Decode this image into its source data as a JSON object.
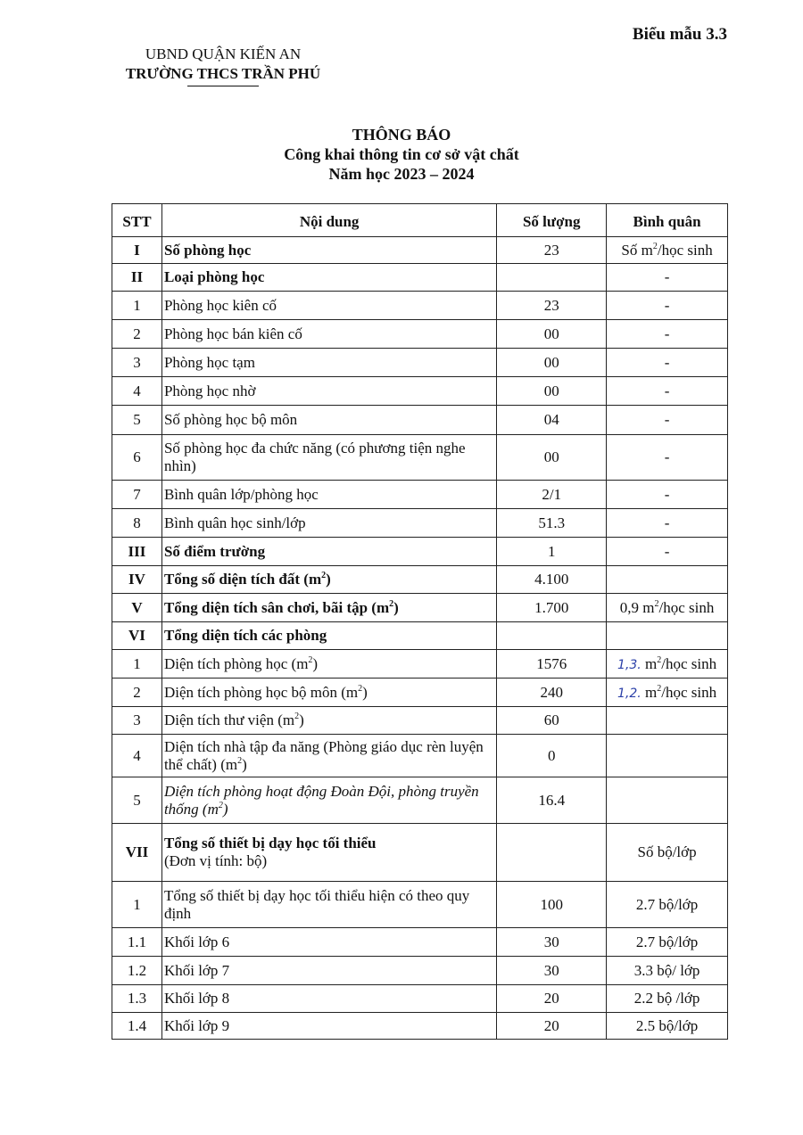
{
  "form_number": "Biểu mẫu 3.3",
  "header": {
    "authority": "UBND QUẬN KIẾN AN",
    "school": "TRƯỜNG THCS TRẦN PHÚ"
  },
  "title": {
    "main": "THÔNG BÁO",
    "subtitle": "Công khai thông tin cơ sở vật chất",
    "year": "Năm học 2023 – 2024"
  },
  "table": {
    "columns": [
      "STT",
      "Nội dung",
      "Số lượng",
      "Bình quân"
    ],
    "rows": [
      {
        "stt": "I",
        "bold": true,
        "content": [
          {
            "t": "Số phòng học"
          }
        ],
        "qty": "23",
        "avg": [
          {
            "t": "Số m"
          },
          {
            "t": "2",
            "sup": true
          },
          {
            "t": "/học sinh"
          }
        ],
        "h": 30
      },
      {
        "stt": "II",
        "bold": true,
        "content": [
          {
            "t": "Loại phòng học"
          }
        ],
        "qty": "",
        "avg": [
          {
            "t": "-"
          }
        ],
        "h": 31
      },
      {
        "stt": "1",
        "content": [
          {
            "t": "Phòng học kiên cố"
          }
        ],
        "qty": "23",
        "avg": [
          {
            "t": "-"
          }
        ],
        "h": 32
      },
      {
        "stt": "2",
        "content": [
          {
            "t": "Phòng học bán kiên cố"
          }
        ],
        "qty": "00",
        "avg": [
          {
            "t": "-"
          }
        ],
        "h": 32
      },
      {
        "stt": "3",
        "content": [
          {
            "t": "Phòng học tạm"
          }
        ],
        "qty": "00",
        "avg": [
          {
            "t": "-"
          }
        ],
        "h": 32
      },
      {
        "stt": "4",
        "content": [
          {
            "t": "Phòng học nhờ"
          }
        ],
        "qty": "00",
        "avg": [
          {
            "t": "-"
          }
        ],
        "h": 32
      },
      {
        "stt": "5",
        "content": [
          {
            "t": "Số phòng học bộ môn"
          }
        ],
        "qty": "04",
        "avg": [
          {
            "t": "-"
          }
        ],
        "h": 33
      },
      {
        "stt": "6",
        "content": [
          {
            "t": "Số phòng học đa chức năng (có phương tiện nghe nhìn)"
          }
        ],
        "qty": "00",
        "avg": [
          {
            "t": "-"
          }
        ],
        "h": 51
      },
      {
        "stt": "7",
        "content": [
          {
            "t": "Bình quân lớp/phòng học"
          }
        ],
        "qty": "2/1",
        "avg": [
          {
            "t": "-"
          }
        ],
        "h": 32
      },
      {
        "stt": "8",
        "content": [
          {
            "t": "Bình quân học sinh/lớp"
          }
        ],
        "qty": "51.3",
        "avg": [
          {
            "t": "-"
          }
        ],
        "h": 32
      },
      {
        "stt": "III",
        "bold": true,
        "content": [
          {
            "t": "Số điểm trường"
          }
        ],
        "qty": "1",
        "avg": [
          {
            "t": "-"
          }
        ],
        "h": 32
      },
      {
        "stt": "IV",
        "bold": true,
        "content": [
          {
            "t": "Tổng số diện tích đất (m"
          },
          {
            "t": "2",
            "sup": true
          },
          {
            "t": ")"
          }
        ],
        "qty": "4.100",
        "avg": [],
        "h": 31
      },
      {
        "stt": "V",
        "bold": true,
        "content": [
          {
            "t": "Tổng diện tích sân chơi, bãi tập (m"
          },
          {
            "t": "2",
            "sup": true
          },
          {
            "t": ")"
          }
        ],
        "qty": "1.700",
        "avg": [
          {
            "t": "0,9 m"
          },
          {
            "t": "2",
            "sup": true
          },
          {
            "t": "/học sinh"
          }
        ],
        "h": 32
      },
      {
        "stt": "VI",
        "bold": true,
        "content": [
          {
            "t": "Tổng diện tích các phòng"
          }
        ],
        "qty": "",
        "avg": [],
        "h": 31
      },
      {
        "stt": "1",
        "content": [
          {
            "t": "Diện tích phòng học (m"
          },
          {
            "t": "2",
            "sup": true
          },
          {
            "t": ")"
          }
        ],
        "qty": "1576",
        "avg": [
          {
            "t": "1,3.",
            "hand": true
          },
          {
            "t": " m"
          },
          {
            "t": "2",
            "sup": true
          },
          {
            "t": "/học sinh"
          }
        ],
        "h": 32
      },
      {
        "stt": "2",
        "content": [
          {
            "t": "Diện tích phòng học bộ môn (m"
          },
          {
            "t": "2",
            "sup": true
          },
          {
            "t": ")"
          }
        ],
        "qty": "240",
        "avg": [
          {
            "t": "1,2.",
            "hand": true
          },
          {
            "t": " m"
          },
          {
            "t": "2",
            "sup": true
          },
          {
            "t": "/học sinh"
          }
        ],
        "h": 32
      },
      {
        "stt": "3",
        "content": [
          {
            "t": "Diện tích thư viện (m"
          },
          {
            "t": "2",
            "sup": true
          },
          {
            "t": ")"
          }
        ],
        "qty": "60",
        "avg": [],
        "h": 31
      },
      {
        "stt": "4",
        "content": [
          {
            "t": "Diện tích nhà tập đa năng (Phòng giáo dục rèn luyện thể chất) (m"
          },
          {
            "t": "2",
            "sup": true
          },
          {
            "t": ")"
          }
        ],
        "qty": "0",
        "avg": [],
        "h": 48
      },
      {
        "stt": "5",
        "italic": true,
        "content": [
          {
            "t": "Diện tích phòng hoạt động Đoàn Đội, phòng truyền thống (m"
          },
          {
            "t": "2",
            "sup": true
          },
          {
            "t": ")"
          }
        ],
        "qty": "16.4",
        "avg": [],
        "h": 52
      },
      {
        "stt": "VII",
        "bold": true,
        "content": [
          {
            "t": "Tổng số thiết bị dạy học tối thiểu"
          },
          {
            "t": "(Đơn vị tính: bộ)",
            "sub": true
          }
        ],
        "qty": "",
        "avg": [
          {
            "t": "Số bộ/lớp"
          }
        ],
        "h": 65
      },
      {
        "stt": "1",
        "content": [
          {
            "t": "Tổng số thiết bị dạy học tối thiểu hiện có theo quy định"
          }
        ],
        "qty": "100",
        "avg": [
          {
            "t": "2.7 bộ/lớp"
          }
        ],
        "h": 52
      },
      {
        "stt": "1.1",
        "content": [
          {
            "t": "Khối lớp 6"
          }
        ],
        "qty": "30",
        "avg": [
          {
            "t": "2.7 bộ/lớp"
          }
        ],
        "h": 32
      },
      {
        "stt": "1.2",
        "content": [
          {
            "t": "Khối lớp 7"
          }
        ],
        "qty": "30",
        "avg": [
          {
            "t": "3.3 bộ/ lớp"
          }
        ],
        "h": 32
      },
      {
        "stt": "1.3",
        "content": [
          {
            "t": "Khối lớp 8"
          }
        ],
        "qty": "20",
        "avg": [
          {
            "t": "2.2 bộ /lớp"
          }
        ],
        "h": 31
      },
      {
        "stt": "1.4",
        "content": [
          {
            "t": "Khối lớp 9"
          }
        ],
        "qty": "20",
        "avg": [
          {
            "t": "2.5 bộ/lớp"
          }
        ],
        "h": 30
      }
    ]
  }
}
